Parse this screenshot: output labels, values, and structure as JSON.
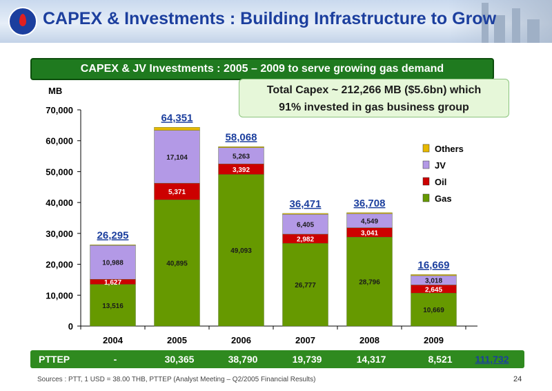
{
  "header": {
    "title": "CAPEX & Investments : Building Infrastructure to Grow"
  },
  "banner": "CAPEX & JV Investments : 2005 – 2009 to serve growing gas demand",
  "callout": {
    "line1": "Total Capex ~ 212,266 MB ($5.6bn) which",
    "line2": "91% invested in gas business group"
  },
  "chart_data": {
    "type": "bar",
    "stacked": true,
    "ylabel": "MB",
    "ylim": [
      0,
      70000
    ],
    "yticks": [
      0,
      10000,
      20000,
      30000,
      40000,
      50000,
      60000,
      70000
    ],
    "ytick_labels": [
      "0",
      "10,000",
      "20,000",
      "30,000",
      "40,000",
      "50,000",
      "60,000",
      "70,000"
    ],
    "categories": [
      "2004",
      "2005",
      "2006",
      "2007",
      "2008",
      "2009"
    ],
    "series": [
      {
        "name": "Gas",
        "color": "#669900",
        "values": [
          13516,
          40895,
          49093,
          26777,
          28796,
          10669
        ],
        "labels": [
          "13,516",
          "40,895",
          "49,093",
          "26,777",
          "28,796",
          "10,669"
        ]
      },
      {
        "name": "Oil",
        "color": "#cc0000",
        "values": [
          1627,
          5371,
          3392,
          2982,
          3041,
          2645
        ],
        "labels": [
          "1,627",
          "5,371",
          "3,392",
          "2,982",
          "3,041",
          "2,645"
        ]
      },
      {
        "name": "JV",
        "color": "#b399e6",
        "values": [
          10988,
          17104,
          5263,
          6405,
          4549,
          3018
        ],
        "labels": [
          "10,988",
          "17,104",
          "5,263",
          "6,405",
          "4,549",
          "3,018"
        ]
      },
      {
        "name": "Others",
        "color": "#e6b800",
        "values": [
          164,
          981,
          320,
          307,
          322,
          337
        ],
        "labels": [
          "",
          "",
          "",
          "",
          "",
          ""
        ]
      }
    ],
    "totals": [
      26295,
      64351,
      58068,
      36471,
      36708,
      16669
    ],
    "total_labels": [
      "26,295",
      "64,351",
      "58,068",
      "36,471",
      "36,708",
      "16,669"
    ],
    "legend_order": [
      "Others",
      "JV",
      "Oil",
      "Gas"
    ],
    "legend_position": "right",
    "grid": false
  },
  "pttep": {
    "label": "PTTEP",
    "values": [
      "-",
      "30,365",
      "38,790",
      "19,739",
      "14,317",
      "8,521"
    ],
    "total": "111,732"
  },
  "footer": {
    "source": "Sources : PTT, 1 USD = 38.00 THB, PTTEP (Analyst Meeting – Q2/2005 Financial Results)",
    "page": "24"
  }
}
